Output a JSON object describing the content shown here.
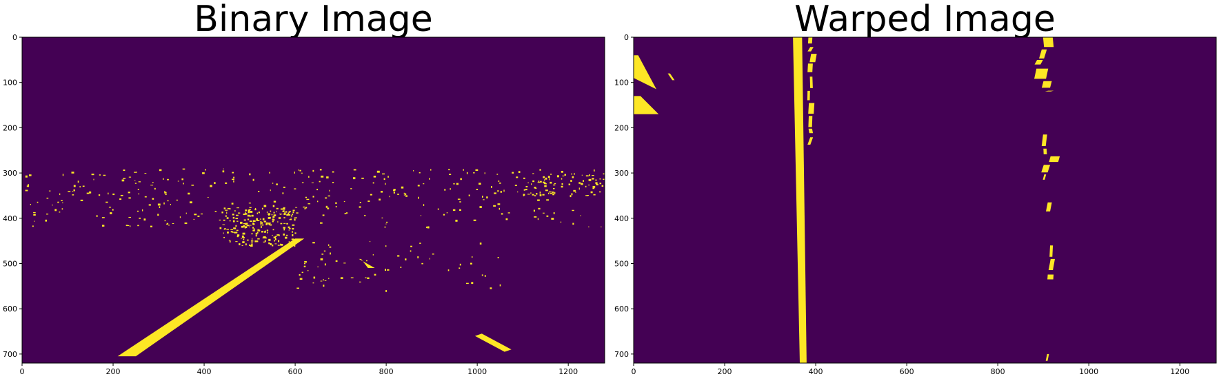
{
  "colors": {
    "background": "#440154",
    "foreground": "#fde725",
    "frame": "#000000",
    "page": "#ffffff"
  },
  "chart_data": [
    {
      "type": "heatmap",
      "title": "Binary Image",
      "colormap": "viridis (binary: 0 = purple, 1 = yellow)",
      "xlim": [
        0,
        1280
      ],
      "ylim": [
        720,
        0
      ],
      "xticks": [
        0,
        200,
        400,
        600,
        800,
        1000,
        1200
      ],
      "yticks": [
        0,
        100,
        200,
        300,
        400,
        500,
        600,
        700
      ],
      "features": [
        {
          "name": "left-lane-line",
          "kind": "band",
          "points": [
            [
              210,
              705
            ],
            [
              250,
              705
            ],
            [
              620,
              445
            ],
            [
              600,
              445
            ]
          ]
        },
        {
          "name": "right-dashed-marking",
          "kind": "band",
          "points": [
            [
              760,
              510
            ],
            [
              775,
              510
            ],
            [
              740,
              490
            ],
            [
              745,
              490
            ]
          ]
        },
        {
          "name": "right-marking-bottom",
          "kind": "band",
          "points": [
            [
              995,
              660
            ],
            [
              1010,
              655
            ],
            [
              1075,
              690
            ],
            [
              1060,
              695
            ]
          ]
        },
        {
          "name": "noise-cluster-center",
          "kind": "cluster",
          "x": [
            440,
            600
          ],
          "y": [
            375,
            460
          ],
          "density": 0.6
        },
        {
          "name": "noise-horizon",
          "kind": "cluster",
          "x": [
            0,
            1280
          ],
          "y": [
            290,
            420
          ],
          "density": 0.08
        },
        {
          "name": "noise-right-cluster",
          "kind": "cluster",
          "x": [
            1100,
            1280
          ],
          "y": [
            300,
            350
          ],
          "density": 0.3
        },
        {
          "name": "noise-mid",
          "kind": "cluster",
          "x": [
            600,
            1050
          ],
          "y": [
            450,
            560
          ],
          "density": 0.05
        }
      ]
    },
    {
      "type": "heatmap",
      "title": "Warped Image",
      "colormap": "viridis (binary: 0 = purple, 1 = yellow)",
      "xlim": [
        0,
        1280
      ],
      "ylim": [
        720,
        0
      ],
      "xticks": [
        0,
        200,
        400,
        600,
        800,
        1000,
        1200
      ],
      "yticks": [
        0,
        100,
        200,
        300,
        400,
        500,
        600,
        700
      ],
      "features": [
        {
          "name": "left-lane-line",
          "kind": "band",
          "points": [
            [
              350,
              0
            ],
            [
              370,
              0
            ],
            [
              380,
              720
            ],
            [
              365,
              720
            ]
          ]
        },
        {
          "name": "left-lane-dashes",
          "kind": "dashes",
          "x": [
            378,
            395
          ],
          "y": [
            0,
            240
          ]
        },
        {
          "name": "right-lane-top",
          "kind": "dashes",
          "x": [
            880,
            925
          ],
          "y": [
            0,
            120
          ]
        },
        {
          "name": "right-lane-segment-1",
          "kind": "dashes",
          "x": [
            895,
            930
          ],
          "y": [
            215,
            315
          ]
        },
        {
          "name": "right-lane-segment-2",
          "kind": "dashes",
          "x": [
            900,
            925
          ],
          "y": [
            460,
            535
          ]
        },
        {
          "name": "right-lane-bits",
          "kind": "dashes",
          "x": [
            905,
            925
          ],
          "y": [
            365,
            385
          ]
        },
        {
          "name": "right-lane-bottom",
          "kind": "dashes",
          "x": [
            900,
            920
          ],
          "y": [
            700,
            715
          ]
        },
        {
          "name": "left-edge-blob",
          "kind": "band",
          "points": [
            [
              0,
              40
            ],
            [
              10,
              40
            ],
            [
              50,
              115
            ],
            [
              0,
              90
            ]
          ]
        },
        {
          "name": "left-edge-blob-2",
          "kind": "band",
          "points": [
            [
              0,
              130
            ],
            [
              15,
              130
            ],
            [
              55,
              170
            ],
            [
              0,
              170
            ]
          ]
        },
        {
          "name": "left-edge-dash",
          "kind": "band",
          "points": [
            [
              75,
              80
            ],
            [
              80,
              80
            ],
            [
              90,
              95
            ],
            [
              85,
              95
            ]
          ]
        }
      ]
    }
  ]
}
